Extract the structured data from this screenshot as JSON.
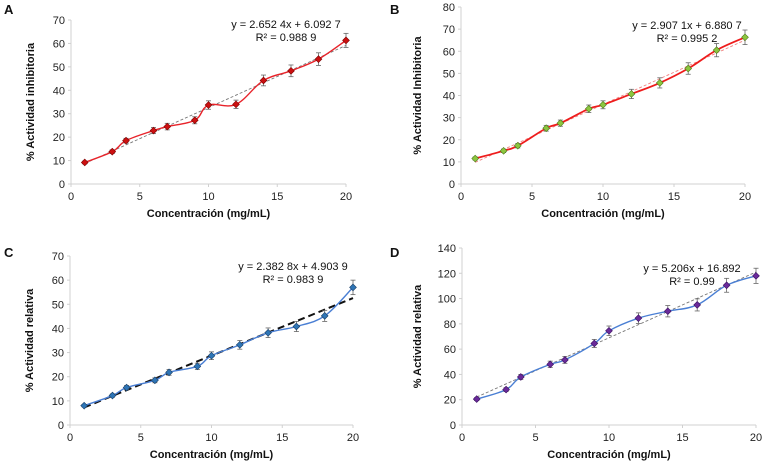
{
  "chart_data": [
    {
      "panel": "A",
      "type": "line",
      "xlabel": "Concentración (mg/mL)",
      "ylabel": "% Actividad inhibitoria",
      "xlim": [
        0,
        20
      ],
      "ylim": [
        0,
        70
      ],
      "xticks": [
        0,
        5,
        10,
        15,
        20
      ],
      "yticks": [
        0,
        10,
        20,
        30,
        40,
        50,
        60,
        70
      ],
      "x": [
        1,
        3,
        4,
        6,
        7,
        9,
        10,
        12,
        14,
        16,
        18,
        20
      ],
      "values": [
        9.2,
        13.8,
        18.5,
        22.8,
        24.5,
        27.2,
        33.7,
        34.0,
        44.2,
        48.3,
        53.3,
        61.3
      ],
      "errors": [
        0.6,
        0.8,
        1.0,
        1.3,
        1.4,
        1.5,
        1.8,
        1.8,
        2.3,
        2.5,
        2.7,
        3.0
      ],
      "trendline": {
        "slope": 2.6524,
        "intercept": 6.0927
      },
      "equation": "y = 2.652 4x + 6.092 7",
      "r2": "R² = 0.988 9",
      "line_color": "#e8232a",
      "marker_color": "#cc1010",
      "marker_edge": "#7a0000",
      "trend_color": "#777777",
      "grid": false
    },
    {
      "panel": "B",
      "type": "line",
      "xlabel": "Concentración (mg/mL)",
      "ylabel": "% Actividad Inhibitoria",
      "xlim": [
        0,
        20
      ],
      "ylim": [
        0,
        80
      ],
      "xticks": [
        0,
        5,
        10,
        15,
        20
      ],
      "yticks": [
        0,
        10,
        20,
        30,
        40,
        50,
        60,
        70,
        80
      ],
      "x": [
        1,
        3,
        4,
        6,
        7,
        9,
        10,
        12,
        14,
        16,
        18,
        20
      ],
      "values": [
        11.5,
        15.0,
        17.3,
        25.2,
        27.5,
        34.0,
        35.8,
        40.7,
        45.7,
        52.2,
        60.5,
        66.3
      ],
      "errors": [
        0.7,
        0.8,
        1.0,
        1.3,
        1.4,
        1.7,
        1.8,
        2.1,
        2.3,
        2.6,
        3.0,
        3.3
      ],
      "trendline": {
        "slope": 2.9071,
        "intercept": 6.8807
      },
      "equation": "y = 2.907 1x + 6.880 7",
      "r2": "R² = 0.995 2",
      "line_color": "#ee1c1c",
      "marker_color": "#8cc63f",
      "marker_edge": "#4d7a1a",
      "trend_color": "#f08080",
      "grid": false
    },
    {
      "panel": "C",
      "type": "line",
      "xlabel": "Concentración (mg/mL)",
      "ylabel": "% Actividad relativa",
      "xlim": [
        0,
        20
      ],
      "ylim": [
        0,
        70
      ],
      "xticks": [
        0,
        5,
        10,
        15,
        20
      ],
      "yticks": [
        0,
        10,
        20,
        30,
        40,
        50,
        60,
        70
      ],
      "x": [
        1,
        3,
        4,
        6,
        7,
        9,
        10,
        12,
        14,
        16,
        18,
        20
      ],
      "values": [
        8.0,
        12.2,
        15.5,
        18.5,
        21.8,
        24.3,
        28.7,
        33.2,
        38.2,
        40.8,
        45.2,
        57.0
      ],
      "errors": [
        0.5,
        0.7,
        0.9,
        1.0,
        1.2,
        1.3,
        1.6,
        1.8,
        2.0,
        2.1,
        2.3,
        3.0
      ],
      "trendline": {
        "slope": 2.3828,
        "intercept": 4.9039
      },
      "equation": "y = 2.382 8x + 4.903 9",
      "r2": "R² = 0.983 9",
      "line_color": "#4a7fd4",
      "marker_color": "#2e75b6",
      "marker_edge": "#1a3f66",
      "trend_color": "#111111",
      "grid": false
    },
    {
      "panel": "D",
      "type": "line",
      "xlabel": "Concentración (mg/mL)",
      "ylabel": "% Actividad relativa",
      "xlim": [
        0,
        20
      ],
      "ylim": [
        0,
        140
      ],
      "xticks": [
        0,
        5,
        10,
        15,
        20
      ],
      "yticks": [
        0,
        20,
        40,
        60,
        80,
        100,
        120,
        140
      ],
      "x": [
        1,
        3,
        4,
        6,
        7,
        9,
        10,
        12,
        14,
        16,
        18,
        20
      ],
      "values": [
        20.5,
        28.0,
        38.0,
        48.0,
        51.5,
        64.5,
        74.5,
        84.5,
        90.0,
        95.0,
        110.5,
        118.0
      ],
      "errors": [
        1.2,
        1.5,
        2.0,
        2.5,
        2.7,
        3.2,
        3.8,
        4.2,
        4.5,
        4.8,
        5.5,
        6.0
      ],
      "trendline": {
        "slope": 5.206,
        "intercept": 16.892
      },
      "equation": "y = 5.206x + 16.892",
      "r2": "R² = 0.99",
      "line_color": "#4a7fd4",
      "marker_color": "#6a2a9a",
      "marker_edge": "#3a1060",
      "trend_color": "#777777",
      "grid": false
    }
  ]
}
